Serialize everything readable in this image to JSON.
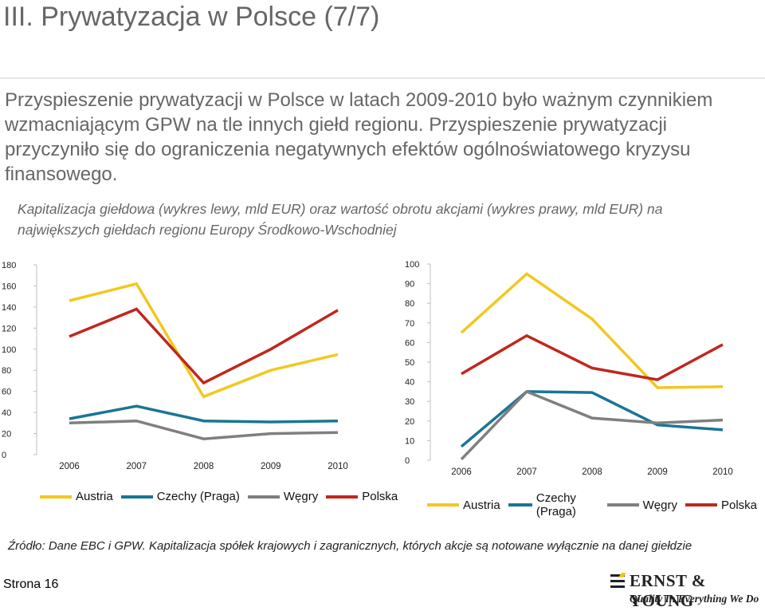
{
  "slide": {
    "title": "III. Prywatyzacja w Polsce (7/7)",
    "lead": "Przyspieszenie prywatyzacji w Polsce w latach 2009-2010 było ważnym czynnikiem wzmacniającym GPW na tle innych giełd regionu. Przyspieszenie prywatyzacji przyczyniło się do ograniczenia negatywnych efektów ogólnoświatowego kryzysu finansowego.",
    "chart_caption": "Kapitalizacja giełdowa (wykres lewy, mld EUR) oraz wartość obrotu akcjami (wykres prawy, mld EUR) na największych giełdach regionu Europy Środkowo-Wschodniej",
    "source": "Źródło: Dane EBC i GPW. Kapitalizacja spółek krajowych i zagranicznych, których akcje są notowane wyłącznie na danej giełdzie",
    "page_label": "Strona 16"
  },
  "logo": {
    "name": "ERNST & YOUNG",
    "tagline": "Quality In Everything We Do"
  },
  "chart_data": [
    {
      "type": "line",
      "title": "",
      "xlabel": "",
      "ylabel": "",
      "x": [
        "2006",
        "2007",
        "2008",
        "2009",
        "2010"
      ],
      "ylim": [
        0,
        180
      ],
      "yticks": [
        0,
        20,
        40,
        60,
        80,
        100,
        120,
        140,
        160,
        180
      ],
      "grid": false,
      "legend_position": "bottom",
      "series": [
        {
          "name": "Austria",
          "color": "#f2c81f",
          "values": [
            146,
            162,
            55,
            80,
            95
          ]
        },
        {
          "name": "Czechy (Praga)",
          "color": "#1a7596",
          "values": [
            34,
            46,
            32,
            31,
            32
          ]
        },
        {
          "name": "Węgry",
          "color": "#7f7f7f",
          "values": [
            30,
            32,
            15,
            20,
            21
          ]
        },
        {
          "name": "Polska",
          "color": "#c0271d",
          "values": [
            112,
            138,
            68,
            100,
            137
          ]
        }
      ]
    },
    {
      "type": "line",
      "title": "",
      "xlabel": "",
      "ylabel": "",
      "x": [
        "2006",
        "2007",
        "2008",
        "2009",
        "2010"
      ],
      "ylim": [
        0,
        100
      ],
      "yticks": [
        0,
        10,
        20,
        30,
        40,
        50,
        60,
        70,
        80,
        90,
        100
      ],
      "grid": false,
      "legend_position": "bottom",
      "series": [
        {
          "name": "Austria",
          "color": "#f2c81f",
          "values": [
            65,
            95,
            72,
            37,
            37.5
          ]
        },
        {
          "name": "Czechy (Praga)",
          "color": "#1a7596",
          "values": [
            7,
            35,
            34.5,
            18,
            15.5
          ]
        },
        {
          "name": "Węgry",
          "color": "#7f7f7f",
          "values": [
            0.5,
            35,
            21.5,
            19,
            20.5
          ]
        },
        {
          "name": "Polska",
          "color": "#c0271d",
          "values": [
            44,
            63.5,
            47,
            41,
            59
          ]
        }
      ]
    }
  ]
}
